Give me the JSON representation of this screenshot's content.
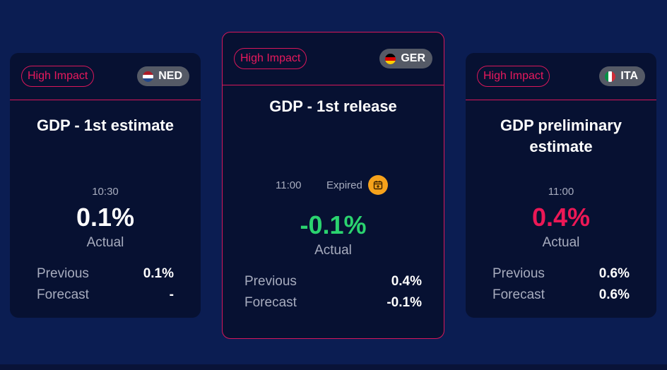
{
  "cards": [
    {
      "impact": "High Impact",
      "country": "NED",
      "title": "GDP - 1st estimate",
      "time": "10:30",
      "actual": "0.1%",
      "actual_color": "#ffffff",
      "actual_label": "Actual",
      "previous_label": "Previous",
      "previous": "0.1%",
      "forecast_label": "Forecast",
      "forecast": "-"
    },
    {
      "impact": "High Impact",
      "country": "GER",
      "title": "GDP - 1st release",
      "time": "11:00",
      "status": "Expired",
      "actual": "-0.1%",
      "actual_color": "#2bd36f",
      "actual_label": "Actual",
      "previous_label": "Previous",
      "previous": "0.4%",
      "forecast_label": "Forecast",
      "forecast": "-0.1%"
    },
    {
      "impact": "High Impact",
      "country": "ITA",
      "title_line1": "GDP preliminary",
      "title_line2": "estimate",
      "time": "11:00",
      "actual": "0.4%",
      "actual_color": "#ec1856",
      "actual_label": "Actual",
      "previous_label": "Previous",
      "previous": "0.6%",
      "forecast_label": "Forecast",
      "forecast": "0.6%"
    }
  ],
  "colors": {
    "background": "#0b1d52",
    "card": "#071132",
    "accent": "#d8175a",
    "positive": "#2bd36f",
    "negative": "#ec1856",
    "expired_icon": "#f6a21b"
  }
}
